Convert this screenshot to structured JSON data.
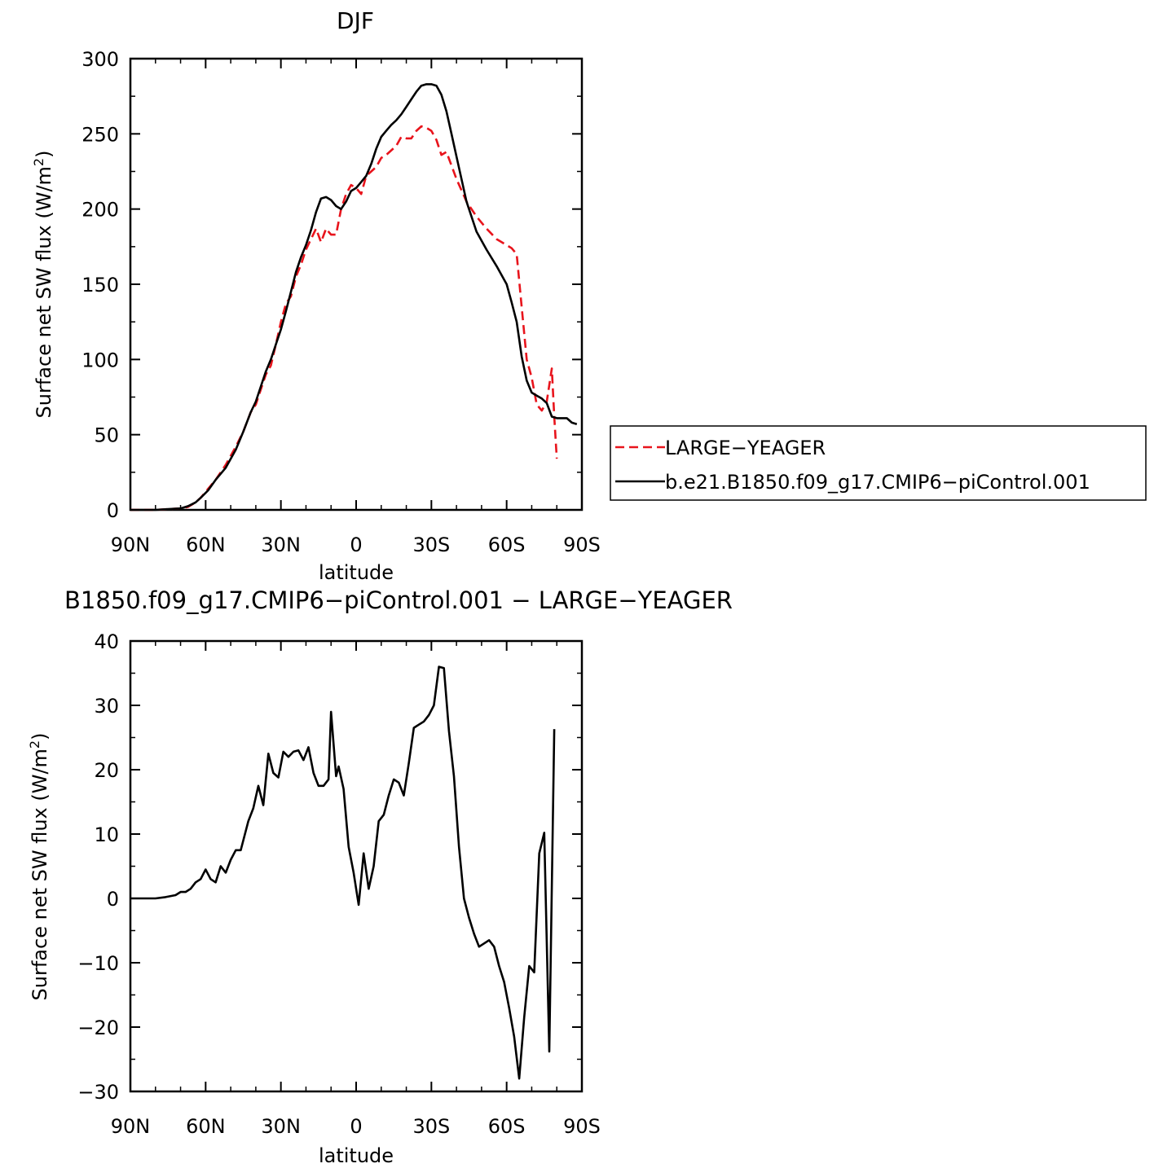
{
  "chart_data": [
    {
      "type": "line",
      "title": "DJF",
      "xlabel": "latitude",
      "ylabel": "Surface net SW flux (W/m²)",
      "ylabel_main": "Surface net SW flux (W/m",
      "ylabel_sup": "2",
      "ylabel_close": ")",
      "xlim": [
        90,
        -90
      ],
      "ylim": [
        0,
        300
      ],
      "xticks": [
        {
          "value": 90,
          "label": "90N"
        },
        {
          "value": 60,
          "label": "60N"
        },
        {
          "value": 30,
          "label": "30N"
        },
        {
          "value": 0,
          "label": "0"
        },
        {
          "value": -30,
          "label": "30S"
        },
        {
          "value": -60,
          "label": "60S"
        },
        {
          "value": -90,
          "label": "90S"
        }
      ],
      "yticks": [
        0,
        50,
        100,
        150,
        200,
        250,
        300
      ],
      "legend": "right",
      "series": [
        {
          "name": "LARGE−YEAGER",
          "color": "#e8141c",
          "dash": true,
          "x": [
            90,
            80,
            75,
            70,
            67,
            64,
            62,
            59,
            56,
            52,
            48,
            45,
            42,
            40,
            38,
            36,
            34,
            32,
            30,
            28,
            26,
            24,
            22,
            20,
            18,
            16,
            14,
            12,
            11,
            10,
            8,
            6,
            4,
            2,
            0,
            -2,
            -4,
            -6,
            -8,
            -10,
            -12,
            -14,
            -16,
            -18,
            -20,
            -22,
            -24,
            -26,
            -28,
            -30,
            -32,
            -34,
            -36,
            -40,
            -44,
            -48,
            -52,
            -56,
            -60,
            -62,
            -64,
            -66,
            -68,
            -70,
            -72,
            -74,
            -76,
            -78,
            -79,
            -80
          ],
          "y": [
            0,
            0,
            0.5,
            1,
            2,
            5,
            8,
            14,
            20,
            30,
            42,
            52,
            65,
            70,
            80,
            90,
            96,
            110,
            125,
            137,
            142,
            155,
            163,
            173,
            180,
            187,
            178,
            187,
            185,
            183,
            183,
            200,
            210,
            216,
            214,
            210,
            222,
            225,
            228,
            234,
            236,
            239,
            242,
            248,
            247,
            247,
            252,
            255,
            254,
            252,
            246,
            236,
            238,
            220,
            205,
            195,
            187,
            180,
            176,
            174,
            170,
            135,
            100,
            88,
            70,
            66,
            72,
            94,
            62,
            34
          ]
        },
        {
          "name": "b.e21.B1850.f09_g17.CMIP6−piControl.001",
          "color": "#000000",
          "dash": false,
          "x": [
            90,
            80,
            75,
            70,
            67,
            64,
            62,
            59,
            56,
            52,
            48,
            45,
            42,
            40,
            38,
            36,
            34,
            32,
            30,
            28,
            26,
            24,
            22,
            20,
            18,
            16,
            14,
            12,
            10,
            8,
            6,
            4,
            2,
            0,
            -2,
            -4,
            -6,
            -8,
            -10,
            -12,
            -14,
            -16,
            -18,
            -20,
            -22,
            -24,
            -26,
            -28,
            -30,
            -32,
            -34,
            -36,
            -38,
            -40,
            -44,
            -48,
            -52,
            -56,
            -60,
            -62,
            -64,
            -66,
            -68,
            -70,
            -72,
            -74,
            -76,
            -78,
            -80,
            -82,
            -84,
            -86,
            -88
          ],
          "y": [
            0,
            0,
            0.5,
            1,
            2.5,
            5,
            8,
            13,
            20,
            28,
            40,
            52,
            65,
            72,
            82,
            92,
            100,
            110,
            120,
            132,
            145,
            158,
            168,
            176,
            186,
            198,
            207,
            208,
            206,
            202,
            200,
            205,
            212,
            214,
            218,
            222,
            230,
            240,
            248,
            252,
            256,
            259,
            263,
            268,
            273,
            278,
            282,
            283,
            283,
            282,
            276,
            265,
            250,
            235,
            205,
            185,
            173,
            162,
            150,
            138,
            125,
            102,
            86,
            78,
            76,
            74,
            71,
            62,
            61,
            61,
            61,
            58,
            57
          ]
        }
      ]
    },
    {
      "type": "line",
      "title": "B1850.f09_g17.CMIP6−piControl.001 − LARGE−YEAGER",
      "xlabel": "latitude",
      "ylabel": "Surface net SW flux (W/m²)",
      "ylabel_main": "Surface net SW flux (W/m",
      "ylabel_sup": "2",
      "ylabel_close": ")",
      "xlim": [
        90,
        -90
      ],
      "ylim": [
        -30,
        40
      ],
      "xticks": [
        {
          "value": 90,
          "label": "90N"
        },
        {
          "value": 60,
          "label": "60N"
        },
        {
          "value": 30,
          "label": "30N"
        },
        {
          "value": 0,
          "label": "0"
        },
        {
          "value": -30,
          "label": "30S"
        },
        {
          "value": -60,
          "label": "60S"
        },
        {
          "value": -90,
          "label": "90S"
        }
      ],
      "yticks": [
        -30,
        -20,
        -10,
        0,
        10,
        20,
        30,
        40
      ],
      "series": [
        {
          "color": "#000000",
          "dash": false,
          "x": [
            90,
            80,
            76,
            72,
            70,
            68,
            66,
            64,
            62,
            60,
            58,
            56,
            54,
            52,
            50,
            48,
            46,
            45,
            43,
            41,
            39,
            37,
            35,
            33,
            31,
            29,
            27,
            25,
            23,
            21,
            19,
            17,
            15,
            13,
            11,
            10,
            8,
            7,
            5,
            3,
            1,
            -1,
            -3,
            -5,
            -7,
            -9,
            -11,
            -13,
            -15,
            -17,
            -19,
            -21,
            -23,
            -25,
            -27,
            -29,
            -31,
            -33,
            -35,
            -37,
            -39,
            -41,
            -43,
            -45,
            -47,
            -49,
            -51,
            -53,
            -55,
            -57,
            -59,
            -61,
            -63,
            -65,
            -67,
            -69,
            -71,
            -73,
            -75,
            -77,
            -79
          ],
          "y": [
            0,
            0,
            0.2,
            0.5,
            1,
            1,
            1.5,
            2.5,
            3,
            4.5,
            3,
            2.5,
            5,
            4,
            6,
            7.5,
            7.5,
            9,
            12,
            14,
            17.5,
            14.5,
            22.5,
            19.5,
            18.8,
            22.8,
            22,
            22.8,
            23,
            21.5,
            23.5,
            19.5,
            17.5,
            17.5,
            18.5,
            29,
            19,
            20.5,
            17,
            8,
            4,
            -1,
            7,
            1.5,
            5,
            12,
            13,
            16,
            18.5,
            18,
            16,
            21,
            26.5,
            27,
            27.5,
            28.5,
            30,
            36,
            35.8,
            26,
            19,
            8,
            0,
            -3,
            -5.5,
            -7.5,
            -7,
            -6.5,
            -7.5,
            -10.5,
            -13,
            -17,
            -21.5,
            -28,
            -18.5,
            -10.5,
            -11.5,
            7,
            10.2,
            -23.8,
            26.3
          ]
        }
      ]
    }
  ]
}
